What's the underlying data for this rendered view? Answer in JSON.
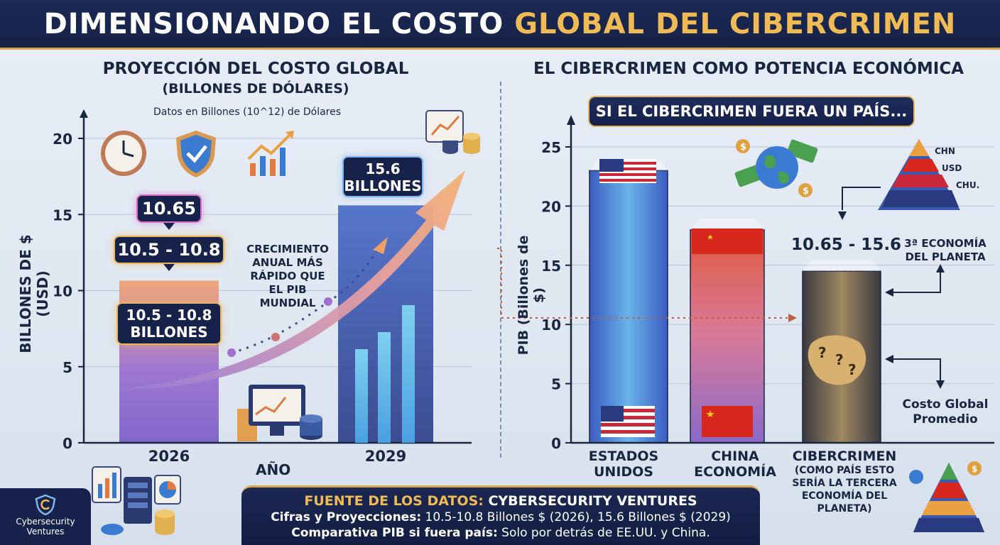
{
  "header": {
    "title_part1": "DIMENSIONANDO EL",
    "title_part2": "COSTO",
    "title_part3": "GLOBAL DEL CIBERCRIMEN"
  },
  "left": {
    "title_line1": "PROYECCIÓN DEL COSTO GLOBAL",
    "title_line2": "(BILLONES DE DÓLARES)",
    "subtitle": "Datos en Billones (10^12) de Dólares",
    "callout_top": "10.65",
    "callout_range": "10.5 - 10.8",
    "callout_bar_l1": "10.5 - 10.8",
    "callout_bar_l2": "BILLONES",
    "callout_2029_l1": "15.6",
    "callout_2029_l2": "BILLONES",
    "growth_l1": "CRECIMIENTO",
    "growth_l2": "ANUAL MÁS",
    "growth_l3": "RÁPIDO QUE",
    "growth_l4": "EL PIB",
    "growth_l5": "MUNDIAL"
  },
  "right": {
    "title": "EL CIBERCRIMEN COMO POTENCIA ECONÓMICA",
    "banner": "SI EL CIBERCRIMEN FUERA UN PAÍS...",
    "range_label": "10.65 - 15.6",
    "rank_l1": "3ª ECONOMÍA",
    "rank_l2": "DEL PLANETA",
    "avg_l1": "Costo Global",
    "avg_l2": "Promedio",
    "pyramid_l1": "CHN",
    "pyramid_l2": "USD",
    "pyramid_l3": "CHU.",
    "cat1_l1": "ESTADOS",
    "cat1_l2": "UNIDOS",
    "cat2_l1": "CHINA",
    "cat2_l2": "ECONOMÍA",
    "cat3_l1": "CIBERCRIMEN",
    "cat3_l2": "(COMO PAÍS ESTO",
    "cat3_l3": "SERÍA LA TERCERA",
    "cat3_l4": "ECONOMÍA DEL",
    "cat3_l5": "PLANETA)"
  },
  "footer": {
    "l1_label": "FUENTE DE LOS DATOS:",
    "l1_value": "CYBERSECURITY VENTURES",
    "l2_label": "Cifras y Proyecciones:",
    "l2_value": "10.5-10.8 Billones $ (2026), 15.6 Billones $ (2029)",
    "l3_label": "Comparativa PIB si fuera país:",
    "l3_value": "Solo por detrás de EE.UU. y China."
  },
  "logo": {
    "l1": "Cybersecurity",
    "l2": "Ventures"
  },
  "icons": [
    "clock-icon",
    "shield-check-icon",
    "growth-chart-icon",
    "analytics-icon",
    "computer-chart-icon",
    "globe-money-icon",
    "pyramid-icon",
    "server-icon"
  ],
  "colors": {
    "navy": "#17224a",
    "gold": "#f0bb55",
    "usa_bar": "#4d86d8",
    "china_bar": "#e0653a",
    "cyber_bar": "#7a6a4a"
  },
  "chart_data": [
    {
      "type": "bar",
      "title": "PROYECCIÓN DEL COSTO GLOBAL (BILLONES DE DÓLARES)",
      "xlabel": "AÑO",
      "ylabel": "BILLONES DE $ (USD)",
      "ylim": [
        0,
        20
      ],
      "yticks": [
        0,
        5,
        10,
        15,
        20
      ],
      "categories": [
        "2026",
        "2029"
      ],
      "values": [
        10.65,
        15.6
      ],
      "grid": true
    },
    {
      "type": "bar",
      "ylabel": "PIB (Billones de $)",
      "ylim": [
        0,
        25
      ],
      "yticks": [
        0,
        5,
        10,
        15,
        20,
        25
      ],
      "categories": [
        "ESTADOS UNIDOS",
        "CHINA ECONOMÍA",
        "CIBERCRIMEN"
      ],
      "values": [
        23,
        18,
        14.5
      ],
      "grid": true
    }
  ]
}
